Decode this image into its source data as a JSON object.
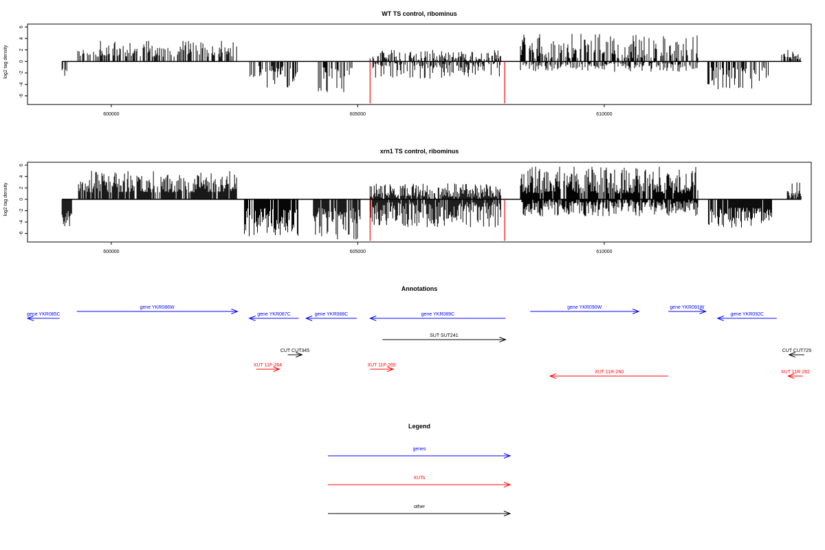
{
  "colors": {
    "gene": "#0000ff",
    "xut": "#ff0000",
    "other": "#000000",
    "axis": "#000000"
  },
  "chart_data": [
    {
      "type": "bar",
      "title": "WT TS control, ribominus",
      "ylabel": "log2 tag density",
      "xlim": [
        598300,
        614200
      ],
      "ylim": [
        -7.5,
        6.5
      ],
      "yticks": [
        6,
        4,
        2,
        0,
        -2,
        -4,
        -6
      ],
      "xticks": [
        600000,
        605000,
        610000
      ],
      "xtick_labels": [
        "600000",
        "605000",
        "610000"
      ],
      "density": 0.55,
      "seed": 11,
      "segments": [
        {
          "start": 599000,
          "end": 599100,
          "sign": -1,
          "lo": 1.2,
          "hi": 3.4
        },
        {
          "start": 599320,
          "end": 602550,
          "sign": 1,
          "lo": 0.8,
          "hi": 3.6
        },
        {
          "start": 602800,
          "end": 603800,
          "sign": -1,
          "lo": 0.8,
          "hi": 4.8
        },
        {
          "start": 604200,
          "end": 605000,
          "sign": -1,
          "lo": 1.0,
          "hi": 5.5
        },
        {
          "start": 605250,
          "end": 607900,
          "sign": 1,
          "lo": 0.2,
          "hi": 2.0
        },
        {
          "start": 605250,
          "end": 607900,
          "sign": -1,
          "lo": 0.2,
          "hi": 3.0
        },
        {
          "start": 608300,
          "end": 611900,
          "sign": 1,
          "lo": 0.5,
          "hi": 4.8
        },
        {
          "start": 608300,
          "end": 611900,
          "sign": -1,
          "lo": 0.2,
          "hi": 1.8
        },
        {
          "start": 612100,
          "end": 613400,
          "sign": -1,
          "lo": 1.0,
          "hi": 5.0
        },
        {
          "start": 613600,
          "end": 614000,
          "sign": 1,
          "lo": 0.3,
          "hi": 2.0
        }
      ],
      "red_lines": [
        {
          "x": 605250,
          "y": -7.3
        },
        {
          "x": 607980,
          "y": -7.3
        }
      ]
    },
    {
      "type": "bar",
      "title": "xrn1 TS control, ribominus",
      "ylabel": "log2 tag density",
      "xlim": [
        598300,
        614200
      ],
      "ylim": [
        -7.5,
        6.5
      ],
      "yticks": [
        6,
        4,
        2,
        0,
        -2,
        -4,
        -6
      ],
      "xticks": [
        600000,
        605000,
        610000
      ],
      "xtick_labels": [
        "600000",
        "605000",
        "610000"
      ],
      "density": 0.85,
      "seed": 23,
      "segments": [
        {
          "start": 599000,
          "end": 599200,
          "sign": -1,
          "lo": 2.0,
          "hi": 5.2
        },
        {
          "start": 599320,
          "end": 602550,
          "sign": 1,
          "lo": 1.2,
          "hi": 5.0
        },
        {
          "start": 602700,
          "end": 603800,
          "sign": -1,
          "lo": 1.5,
          "hi": 6.5
        },
        {
          "start": 604100,
          "end": 605050,
          "sign": -1,
          "lo": 1.5,
          "hi": 7.2
        },
        {
          "start": 605250,
          "end": 607900,
          "sign": 1,
          "lo": 0.3,
          "hi": 2.8
        },
        {
          "start": 605250,
          "end": 607900,
          "sign": -1,
          "lo": 0.5,
          "hi": 5.0
        },
        {
          "start": 608300,
          "end": 611900,
          "sign": 1,
          "lo": 1.0,
          "hi": 5.8
        },
        {
          "start": 608300,
          "end": 611900,
          "sign": -1,
          "lo": 0.3,
          "hi": 3.0
        },
        {
          "start": 612100,
          "end": 613400,
          "sign": -1,
          "lo": 1.5,
          "hi": 5.0
        },
        {
          "start": 613700,
          "end": 614000,
          "sign": 1,
          "lo": 0.3,
          "hi": 3.0
        }
      ],
      "red_lines": [
        {
          "x": 605250,
          "y": -7.3
        },
        {
          "x": 607980,
          "y": -7.3
        }
      ]
    }
  ],
  "annotations": {
    "title": "Annotations",
    "xlim": [
      598300,
      614200
    ],
    "features": [
      {
        "label": "gene YKR085C",
        "type": "gene",
        "strand": "-",
        "start": 598300,
        "end": 598950,
        "row": 2
      },
      {
        "label": "gene YKR086W",
        "type": "gene",
        "strand": "+",
        "start": 599300,
        "end": 602560,
        "row": 1
      },
      {
        "label": "gene YKR087C",
        "type": "gene",
        "strand": "-",
        "start": 602800,
        "end": 603800,
        "row": 2
      },
      {
        "label": "gene YKR088C",
        "type": "gene",
        "strand": "-",
        "start": 603950,
        "end": 604980,
        "row": 2
      },
      {
        "label": "gene YKR089C",
        "type": "gene",
        "strand": "-",
        "start": 605250,
        "end": 608000,
        "row": 2
      },
      {
        "label": "gene YKR090W",
        "type": "gene",
        "strand": "+",
        "start": 608500,
        "end": 610700,
        "row": 1
      },
      {
        "label": "gene YKR091W",
        "type": "gene",
        "strand": "+",
        "start": 611300,
        "end": 612060,
        "row": 1
      },
      {
        "label": "gene YKR092C",
        "type": "gene",
        "strand": "-",
        "start": 612300,
        "end": 613500,
        "row": 2
      },
      {
        "label": "SUT SUT241",
        "type": "other",
        "strand": "+",
        "start": 605500,
        "end": 608000,
        "row": 3
      },
      {
        "label": "CUT CUT345",
        "type": "other",
        "strand": "+",
        "start": 603580,
        "end": 603870,
        "row": 4
      },
      {
        "label": "CUT CUT729",
        "type": "other",
        "strand": "-",
        "start": 613750,
        "end": 614060,
        "row": 4
      },
      {
        "label": "XUT 11F-264",
        "type": "xut",
        "strand": "+",
        "start": 602940,
        "end": 603410,
        "row": 5
      },
      {
        "label": "XUT 11F-265",
        "type": "xut",
        "strand": "+",
        "start": 605250,
        "end": 605720,
        "row": 5
      },
      {
        "label": "XUT 11R-260",
        "type": "xut",
        "strand": "-",
        "start": 608900,
        "end": 611300,
        "row": 6
      },
      {
        "label": "XUT 11R-262",
        "type": "xut",
        "strand": "-",
        "start": 613730,
        "end": 614030,
        "row": 6
      }
    ]
  },
  "legend": {
    "title": "Legend",
    "items": [
      {
        "label": "genes",
        "type": "gene"
      },
      {
        "label": "XUTs",
        "type": "xut"
      },
      {
        "label": "other",
        "type": "other"
      }
    ]
  }
}
